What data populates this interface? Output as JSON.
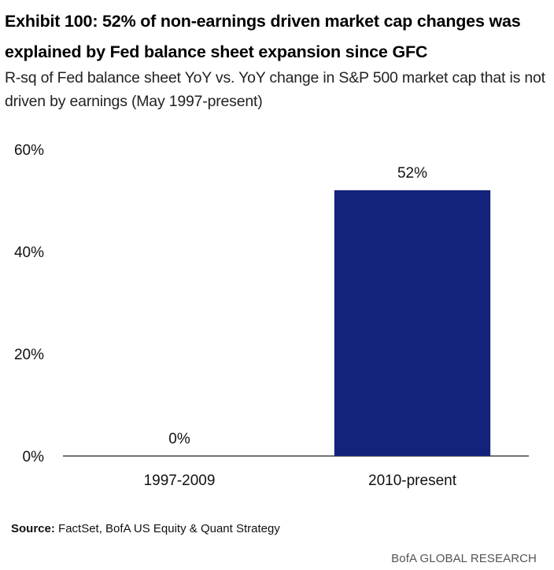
{
  "header": {
    "title": "Exhibit 100: 52% of non-earnings driven market cap changes was explained by Fed balance sheet expansion since GFC",
    "subtitle": "R-sq of Fed balance sheet YoY vs. YoY change in S&P 500 market cap that is not driven by earnings (May 1997-present)"
  },
  "chart_data": {
    "type": "bar",
    "categories": [
      "1997-2009",
      "2010-present"
    ],
    "values": [
      0,
      52
    ],
    "data_labels": [
      "0%",
      "52%"
    ],
    "ylim": [
      0,
      60
    ],
    "yticks": [
      0,
      20,
      40,
      60
    ],
    "ytick_labels": [
      "0%",
      "20%",
      "40%",
      "60%"
    ],
    "xlabel": "",
    "ylabel": "",
    "grid": false,
    "bar_color": "#13227a"
  },
  "footer": {
    "source_label": "Source:",
    "source_text": " FactSet, BofA US Equity & Quant Strategy",
    "brand": "BofA GLOBAL RESEARCH"
  }
}
